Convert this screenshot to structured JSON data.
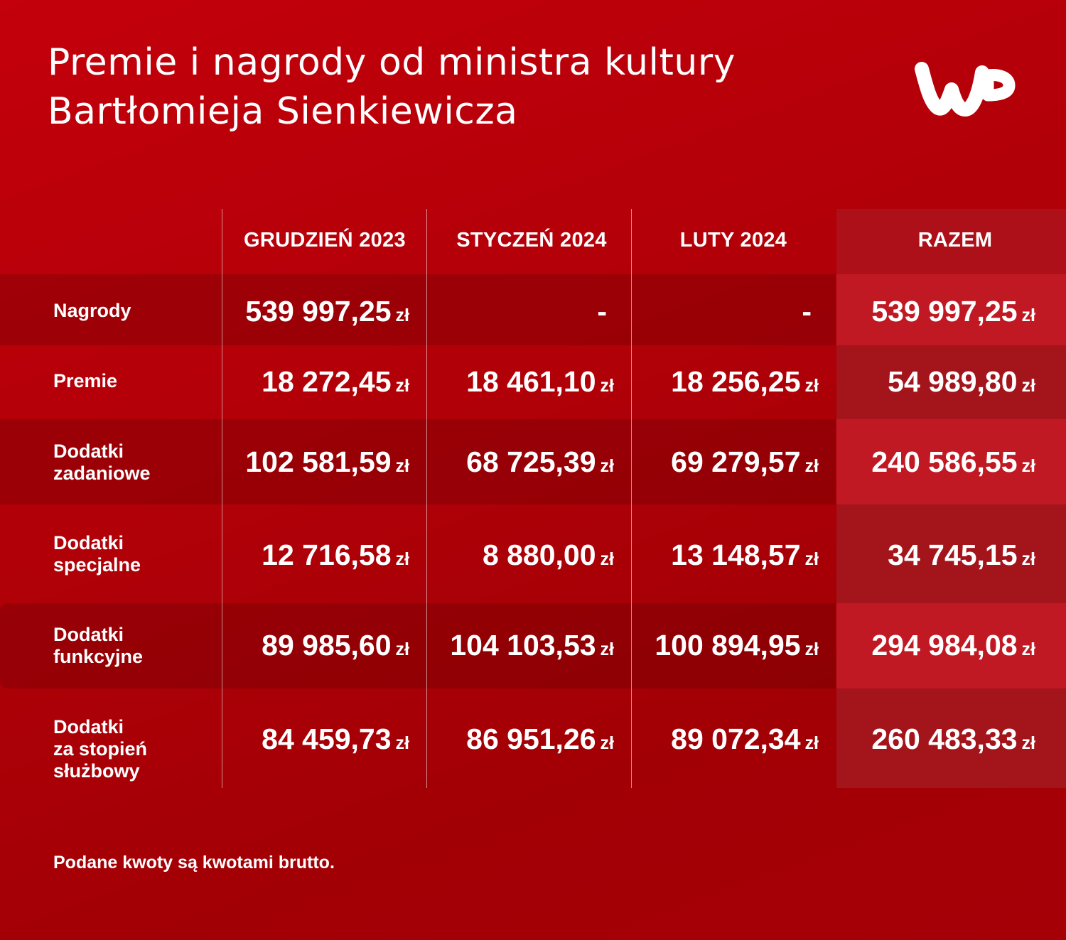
{
  "title": {
    "line1": "Premie i nagrody od ministra kultury",
    "line2": "Bartłomieja Sienkiewicza"
  },
  "logo": {
    "icon": "wp-logo",
    "text": "WP",
    "color": "#ffffff"
  },
  "colors": {
    "background": "#b00008",
    "razem_column": "#b3151e",
    "text": "#ffffff"
  },
  "footnote": "Podane kwoty są kwotami brutto.",
  "chart_data": {
    "type": "table",
    "columns": [
      "GRUDZIEŃ 2023",
      "STYCZEŃ 2024",
      "LUTY 2024",
      "RAZEM"
    ],
    "currency": "zł",
    "rows": [
      {
        "label": [
          "Nagrody"
        ],
        "values": [
          "539 997,25",
          "-",
          "-",
          "539 997,25"
        ]
      },
      {
        "label": [
          "Premie"
        ],
        "values": [
          "18 272,45",
          "18 461,10",
          "18 256,25",
          "54 989,80"
        ]
      },
      {
        "label": [
          "Dodatki",
          "zadaniowe"
        ],
        "values": [
          "102 581,59",
          "68 725,39",
          "69 279,57",
          "240 586,55"
        ]
      },
      {
        "label": [
          "Dodatki",
          "specjalne"
        ],
        "values": [
          "12 716,58",
          "8 880,00",
          "13 148,57",
          "34 745,15"
        ]
      },
      {
        "label": [
          "Dodatki",
          "funkcyjne"
        ],
        "values": [
          "89 985,60",
          "104 103,53",
          "100 894,95",
          "294 984,08"
        ]
      },
      {
        "label": [
          "Dodatki",
          "za stopień",
          "służbowy"
        ],
        "values": [
          "84 459,73",
          "86 951,26",
          "89 072,34",
          "260 483,33"
        ]
      }
    ]
  }
}
